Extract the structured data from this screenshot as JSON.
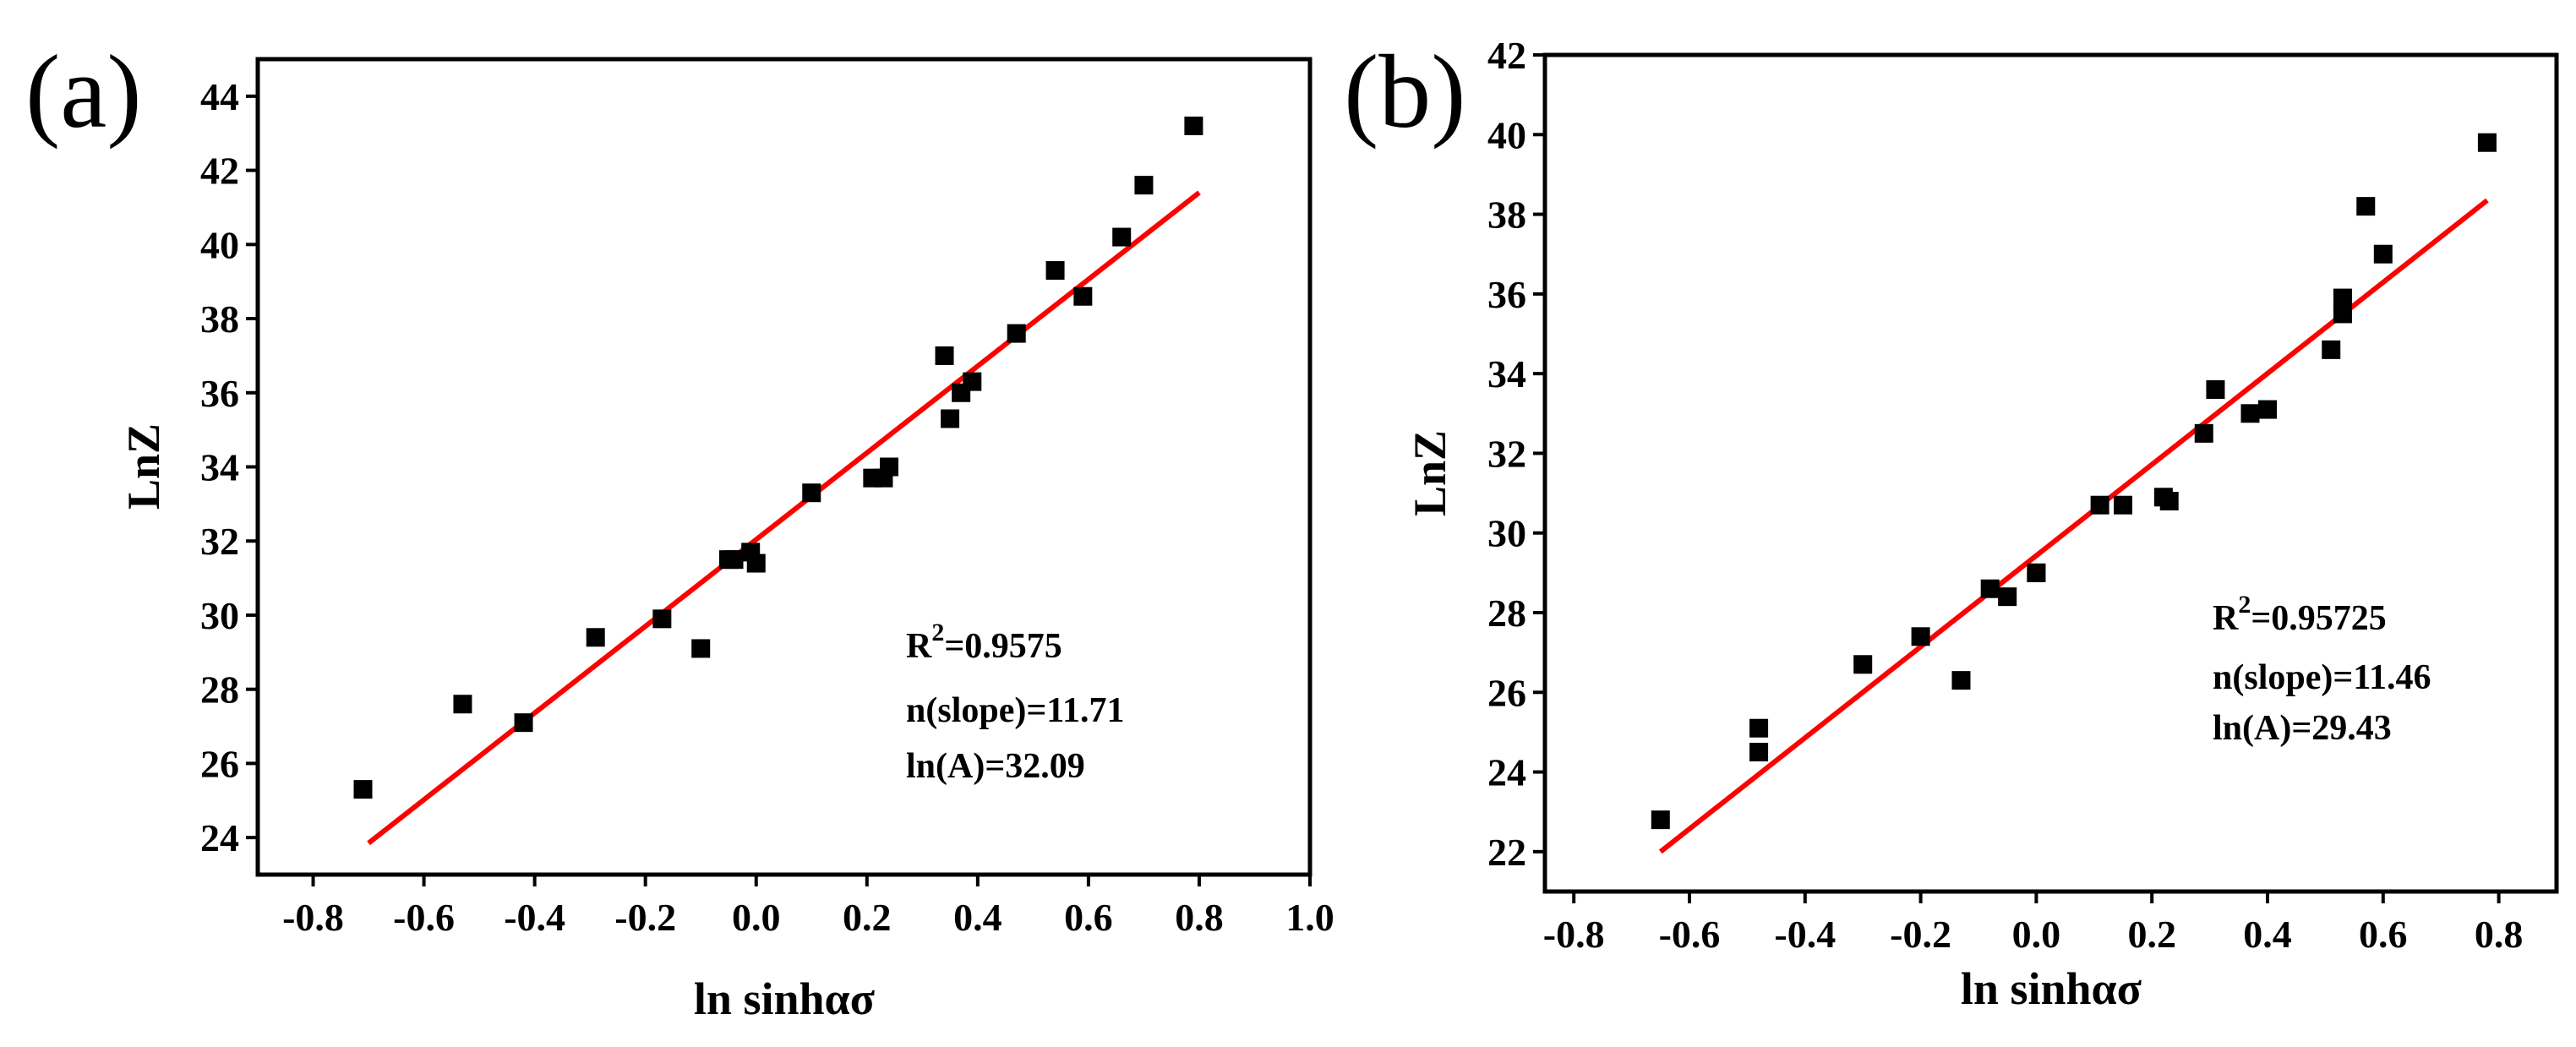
{
  "chart_data": [
    {
      "type": "scatter",
      "panel_label": "(a)",
      "xlabel": "ln sinhασ",
      "ylabel": "LnZ",
      "xlim": [
        -0.9,
        1.0
      ],
      "ylim": [
        23,
        45
      ],
      "xticks": [
        -0.8,
        -0.6,
        -0.4,
        -0.2,
        0.0,
        0.2,
        0.4,
        0.6,
        0.8,
        1.0
      ],
      "xtick_labels": [
        "-0.8",
        "-0.6",
        "-0.4",
        "-0.2",
        "0.0",
        "0.2",
        "0.4",
        "0.6",
        "0.8",
        "1.0"
      ],
      "yticks": [
        24,
        26,
        28,
        30,
        32,
        34,
        36,
        38,
        40,
        42,
        44
      ],
      "ytick_labels": [
        "24",
        "26",
        "28",
        "30",
        "32",
        "34",
        "36",
        "38",
        "40",
        "42",
        "44"
      ],
      "grid": false,
      "series": [
        {
          "name": "data",
          "marker": "square",
          "color": "#000000",
          "x": [
            -0.71,
            -0.53,
            -0.42,
            -0.29,
            -0.17,
            -0.1,
            -0.05,
            -0.04,
            -0.01,
            0.0,
            0.1,
            0.21,
            0.23,
            0.24,
            0.34,
            0.35,
            0.37,
            0.39,
            0.47,
            0.54,
            0.59,
            0.66,
            0.7,
            0.79
          ],
          "y": [
            25.3,
            27.6,
            27.1,
            29.4,
            29.9,
            29.1,
            31.5,
            31.5,
            31.7,
            31.4,
            33.3,
            33.7,
            33.7,
            34.0,
            37.0,
            35.3,
            36.0,
            36.3,
            37.6,
            39.3,
            38.6,
            40.2,
            41.6,
            43.2
          ]
        }
      ],
      "fit": {
        "color": "#ff0000",
        "x": [
          -0.7,
          0.8
        ],
        "y": [
          23.85,
          41.4
        ]
      },
      "annotations": [
        "R",
        "2",
        "=0.9575",
        "n(slope)=11.71",
        "ln(A)=32.09"
      ]
    },
    {
      "type": "scatter",
      "panel_label": "(b)",
      "xlabel": "ln sinhασ",
      "ylabel": "LnZ",
      "xlim": [
        -0.85,
        0.9
      ],
      "ylim": [
        21,
        42
      ],
      "xticks": [
        -0.8,
        -0.6,
        -0.4,
        -0.2,
        0.0,
        0.2,
        0.4,
        0.6,
        0.8
      ],
      "xtick_labels": [
        "-0.8",
        "-0.6",
        "-0.4",
        "-0.2",
        "0.0",
        "0.2",
        "0.4",
        "0.6",
        "0.8"
      ],
      "yticks": [
        22,
        24,
        26,
        28,
        30,
        32,
        34,
        36,
        38,
        40,
        42
      ],
      "ytick_labels": [
        "22",
        "24",
        "26",
        "28",
        "30",
        "32",
        "34",
        "36",
        "38",
        "40",
        "42"
      ],
      "grid": false,
      "series": [
        {
          "name": "data",
          "marker": "square",
          "color": "#000000",
          "x": [
            -0.65,
            -0.48,
            -0.48,
            -0.3,
            -0.2,
            -0.13,
            -0.08,
            -0.05,
            0.0,
            0.0,
            0.11,
            0.15,
            0.22,
            0.23,
            0.29,
            0.31,
            0.37,
            0.4,
            0.51,
            0.53,
            0.53,
            0.57,
            0.6,
            0.78
          ],
          "y": [
            22.8,
            25.1,
            24.5,
            26.7,
            27.4,
            26.3,
            28.6,
            28.4,
            29.0,
            29.0,
            30.7,
            30.7,
            30.9,
            30.8,
            32.5,
            33.6,
            33.0,
            33.1,
            34.6,
            35.5,
            35.9,
            38.2,
            37.0,
            39.8
          ]
        }
      ],
      "fit": {
        "color": "#ff0000",
        "x": [
          -0.65,
          0.78
        ],
        "y": [
          22.0,
          38.35
        ]
      },
      "annotations": [
        "R",
        "2",
        "=0.95725",
        "n(slope)=11.46",
        "ln(A)=29.43"
      ]
    }
  ]
}
